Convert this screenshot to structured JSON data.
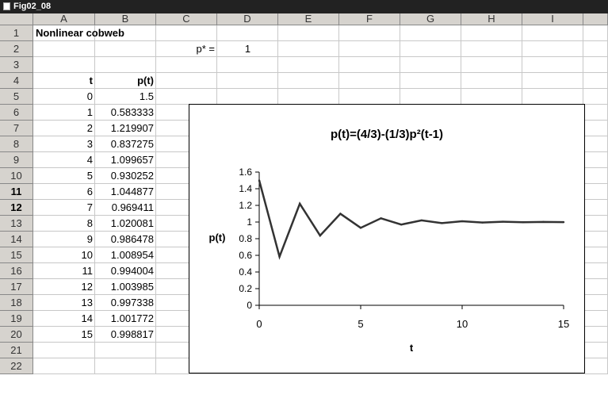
{
  "window": {
    "title": "Fig02_08"
  },
  "columns": [
    "A",
    "B",
    "C",
    "D",
    "E",
    "F",
    "G",
    "H",
    "I"
  ],
  "rows": [
    "1",
    "2",
    "3",
    "4",
    "5",
    "6",
    "7",
    "8",
    "9",
    "10",
    "11",
    "12",
    "13",
    "14",
    "15",
    "16",
    "17",
    "18",
    "19",
    "20",
    "21",
    "22"
  ],
  "bold_rows": [
    "11",
    "12"
  ],
  "sheet": {
    "title": "Nonlinear cobweb",
    "pstar_label": "p* =",
    "pstar_value": "1",
    "header_t": "t",
    "header_p": "p(t)",
    "table": [
      {
        "t": "0",
        "p": "1.5"
      },
      {
        "t": "1",
        "p": "0.583333"
      },
      {
        "t": "2",
        "p": "1.219907"
      },
      {
        "t": "3",
        "p": "0.837275"
      },
      {
        "t": "4",
        "p": "1.099657"
      },
      {
        "t": "5",
        "p": "0.930252"
      },
      {
        "t": "6",
        "p": "1.044877"
      },
      {
        "t": "7",
        "p": "0.969411"
      },
      {
        "t": "8",
        "p": "1.020081"
      },
      {
        "t": "9",
        "p": "0.986478"
      },
      {
        "t": "10",
        "p": "1.008954"
      },
      {
        "t": "11",
        "p": "0.994004"
      },
      {
        "t": "12",
        "p": "1.003985"
      },
      {
        "t": "13",
        "p": "0.997338"
      },
      {
        "t": "14",
        "p": "1.001772"
      },
      {
        "t": "15",
        "p": "0.998817"
      }
    ]
  },
  "chart_data": {
    "type": "line",
    "title": "p(t)=(4/3)-(1/3)p²(t-1)",
    "xlabel": "t",
    "ylabel": "p(t)",
    "xlim": [
      0,
      15
    ],
    "ylim": [
      0,
      1.6
    ],
    "xticks": [
      "0",
      "5",
      "10",
      "15"
    ],
    "yticks": [
      "0",
      "0.2",
      "0.4",
      "0.6",
      "0.8",
      "1",
      "1.2",
      "1.4",
      "1.6"
    ],
    "grid": false,
    "x": [
      0,
      1,
      2,
      3,
      4,
      5,
      6,
      7,
      8,
      9,
      10,
      11,
      12,
      13,
      14,
      15
    ],
    "series": [
      {
        "values": [
          1.5,
          0.583333,
          1.219907,
          0.837275,
          1.099657,
          0.930252,
          1.044877,
          0.969411,
          1.020081,
          0.986478,
          1.008954,
          0.994004,
          1.003985,
          0.997338,
          1.001772,
          0.998817
        ]
      }
    ]
  }
}
